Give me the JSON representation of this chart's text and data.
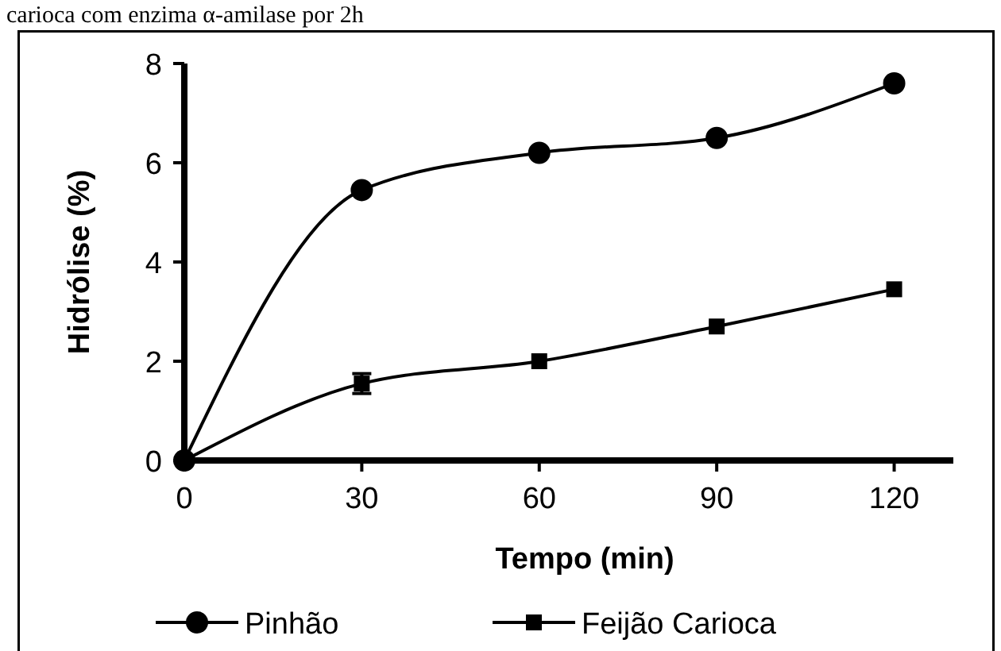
{
  "chart_data": {
    "type": "line",
    "xlabel": "Tempo (min)",
    "ylabel": "Hidrólise (%)",
    "annotations": [
      "carioca com enzima α-amilase por 2h"
    ],
    "x": [
      0,
      30,
      60,
      90,
      120
    ],
    "xlim": [
      0,
      130
    ],
    "xticks": [
      0,
      30,
      60,
      90,
      120
    ],
    "ylim": [
      0,
      8
    ],
    "yticks": [
      0,
      2,
      4,
      6,
      8
    ],
    "series": [
      {
        "name": "Pinhão",
        "color": "#000000",
        "marker": "circle",
        "values": [
          0,
          5.45,
          6.2,
          6.5,
          7.6
        ]
      },
      {
        "name": "Feijão Carioca",
        "color": "#000000",
        "marker": "square",
        "values": [
          0,
          1.55,
          2.0,
          2.7,
          3.45
        ],
        "errors": [
          null,
          0.2,
          null,
          null,
          null
        ]
      }
    ],
    "grid": false,
    "legend": "bottom",
    "line_style": "solid"
  }
}
